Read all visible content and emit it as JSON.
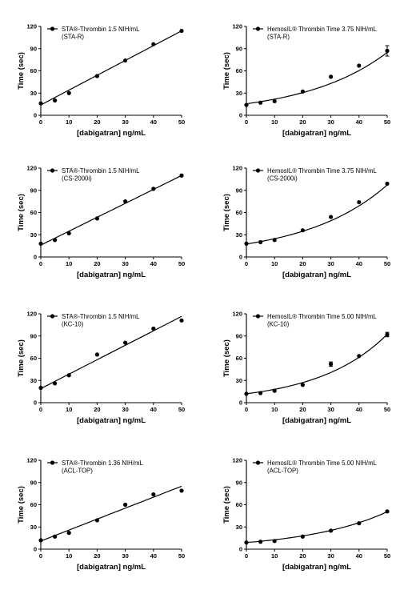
{
  "chart_data": [
    {
      "type": "scatter",
      "legend": [
        "STA®-Thrombin 1.5 NIH/mL",
        "(STA-R)"
      ],
      "xlabel": "[dabigatran] ng/mL",
      "ylabel": "Time (sec)",
      "xlim": [
        0,
        50
      ],
      "ylim": [
        0,
        120
      ],
      "xticks": [
        0,
        10,
        20,
        30,
        40,
        50
      ],
      "yticks": [
        0,
        30,
        60,
        90,
        120
      ],
      "points": [
        {
          "x": 0,
          "y": 16
        },
        {
          "x": 5,
          "y": 20
        },
        {
          "x": 10,
          "y": 30
        },
        {
          "x": 20,
          "y": 53
        },
        {
          "x": 30,
          "y": 74
        },
        {
          "x": 40,
          "y": 96
        },
        {
          "x": 50,
          "y": 114
        }
      ],
      "fit": {
        "kind": "linear",
        "intercept": 14,
        "slope": 2
      }
    },
    {
      "type": "scatter",
      "legend": [
        "HemosIL® Thrombin Time 3.75 NIH/mL",
        "(STA-R)"
      ],
      "xlabel": "[dabigatran] ng/mL",
      "ylabel": "Time (sec)",
      "xlim": [
        0,
        50
      ],
      "ylim": [
        0,
        120
      ],
      "xticks": [
        0,
        10,
        20,
        30,
        40,
        50
      ],
      "yticks": [
        0,
        30,
        60,
        90,
        120
      ],
      "points": [
        {
          "x": 0,
          "y": 14
        },
        {
          "x": 5,
          "y": 17
        },
        {
          "x": 10,
          "y": 19
        },
        {
          "x": 20,
          "y": 32
        },
        {
          "x": 30,
          "y": 52
        },
        {
          "x": 40,
          "y": 67
        },
        {
          "x": 50,
          "y": 87,
          "err": 7
        }
      ],
      "fit": {
        "kind": "exponential",
        "a": 15.5,
        "b": 0.034
      }
    },
    {
      "type": "scatter",
      "legend": [
        "STA®-Thrombin 1.5 NIH/mL",
        "(CS-2000i)"
      ],
      "xlabel": "[dabigatran] ng/mL",
      "ylabel": "Time (sec)",
      "xlim": [
        0,
        50
      ],
      "ylim": [
        0,
        120
      ],
      "xticks": [
        0,
        10,
        20,
        30,
        40,
        50
      ],
      "yticks": [
        0,
        30,
        60,
        90,
        120
      ],
      "points": [
        {
          "x": 0,
          "y": 18
        },
        {
          "x": 5,
          "y": 23
        },
        {
          "x": 10,
          "y": 32
        },
        {
          "x": 20,
          "y": 52
        },
        {
          "x": 30,
          "y": 75
        },
        {
          "x": 40,
          "y": 92
        },
        {
          "x": 50,
          "y": 110
        }
      ],
      "fit": {
        "kind": "linear",
        "intercept": 16,
        "slope": 1.88
      }
    },
    {
      "type": "scatter",
      "legend": [
        "HemosIL® Thrombin Time 3.75 NIH/mL",
        "(CS-2000i)"
      ],
      "xlabel": "[dabigatran] ng/mL",
      "ylabel": "Time (sec)",
      "xlim": [
        0,
        50
      ],
      "ylim": [
        0,
        120
      ],
      "xticks": [
        0,
        10,
        20,
        30,
        40,
        50
      ],
      "yticks": [
        0,
        30,
        60,
        90,
        120
      ],
      "points": [
        {
          "x": 0,
          "y": 18
        },
        {
          "x": 5,
          "y": 20
        },
        {
          "x": 10,
          "y": 23
        },
        {
          "x": 20,
          "y": 36
        },
        {
          "x": 30,
          "y": 54
        },
        {
          "x": 40,
          "y": 74
        },
        {
          "x": 50,
          "y": 99
        }
      ],
      "fit": {
        "kind": "exponential",
        "a": 17.5,
        "b": 0.0343
      }
    },
    {
      "type": "scatter",
      "legend": [
        "STA®-Thrombin 1.5 NIH/mL",
        "(KC-10)"
      ],
      "xlabel": "[dabigatran] ng/mL",
      "ylabel": "Time (sec)",
      "xlim": [
        0,
        50
      ],
      "ylim": [
        0,
        120
      ],
      "xticks": [
        0,
        10,
        20,
        30,
        40,
        50
      ],
      "yticks": [
        0,
        30,
        60,
        90,
        120
      ],
      "points": [
        {
          "x": 0,
          "y": 20
        },
        {
          "x": 5,
          "y": 26
        },
        {
          "x": 10,
          "y": 37
        },
        {
          "x": 20,
          "y": 65
        },
        {
          "x": 30,
          "y": 81
        },
        {
          "x": 40,
          "y": 100
        },
        {
          "x": 50,
          "y": 111
        }
      ],
      "fit": {
        "kind": "linear",
        "intercept": 19,
        "slope": 1.95
      }
    },
    {
      "type": "scatter",
      "legend": [
        "HemosIL® Thrombin Time 5.00 NIH/mL",
        "(KC-10)"
      ],
      "xlabel": "[dabigatran] ng/mL",
      "ylabel": "Time (sec)",
      "xlim": [
        0,
        50
      ],
      "ylim": [
        0,
        120
      ],
      "xticks": [
        0,
        10,
        20,
        30,
        40,
        50
      ],
      "yticks": [
        0,
        30,
        60,
        90,
        120
      ],
      "points": [
        {
          "x": 0,
          "y": 12
        },
        {
          "x": 5,
          "y": 13
        },
        {
          "x": 10,
          "y": 16
        },
        {
          "x": 20,
          "y": 24
        },
        {
          "x": 30,
          "y": 52,
          "err": 3
        },
        {
          "x": 40,
          "y": 63
        },
        {
          "x": 50,
          "y": 92,
          "err": 3
        }
      ],
      "fit": {
        "kind": "exponential",
        "a": 12,
        "b": 0.0408
      }
    },
    {
      "type": "scatter",
      "legend": [
        "STA®-Thrombin 1.36 NIH/mL",
        "(ACL-TOP)"
      ],
      "xlabel": "[dabigatran] ng/mL",
      "ylabel": "Time (sec)",
      "xlim": [
        0,
        50
      ],
      "ylim": [
        0,
        120
      ],
      "xticks": [
        0,
        10,
        20,
        30,
        40,
        50
      ],
      "yticks": [
        0,
        30,
        60,
        90,
        120
      ],
      "points": [
        {
          "x": 0,
          "y": 12
        },
        {
          "x": 5,
          "y": 17
        },
        {
          "x": 10,
          "y": 22
        },
        {
          "x": 20,
          "y": 39
        },
        {
          "x": 30,
          "y": 60
        },
        {
          "x": 40,
          "y": 74
        },
        {
          "x": 50,
          "y": 79
        }
      ],
      "fit": {
        "kind": "linear",
        "intercept": 11,
        "slope": 1.48
      }
    },
    {
      "type": "scatter",
      "legend": [
        "HemosIL® Thrombin Time 5.00 NIH/mL",
        "(ACL-TOP)"
      ],
      "xlabel": "[dabigatran] ng/mL",
      "ylabel": "Time (sec)",
      "xlim": [
        0,
        50
      ],
      "ylim": [
        0,
        120
      ],
      "xticks": [
        0,
        10,
        20,
        30,
        40,
        50
      ],
      "yticks": [
        0,
        30,
        60,
        90,
        120
      ],
      "points": [
        {
          "x": 0,
          "y": 9
        },
        {
          "x": 5,
          "y": 10
        },
        {
          "x": 10,
          "y": 11
        },
        {
          "x": 20,
          "y": 17
        },
        {
          "x": 30,
          "y": 25
        },
        {
          "x": 40,
          "y": 35
        },
        {
          "x": 50,
          "y": 51
        }
      ],
      "fit": {
        "kind": "exponential",
        "a": 9,
        "b": 0.0345
      }
    }
  ],
  "colors": {
    "ink": "#000000",
    "background": "#ffffff"
  }
}
